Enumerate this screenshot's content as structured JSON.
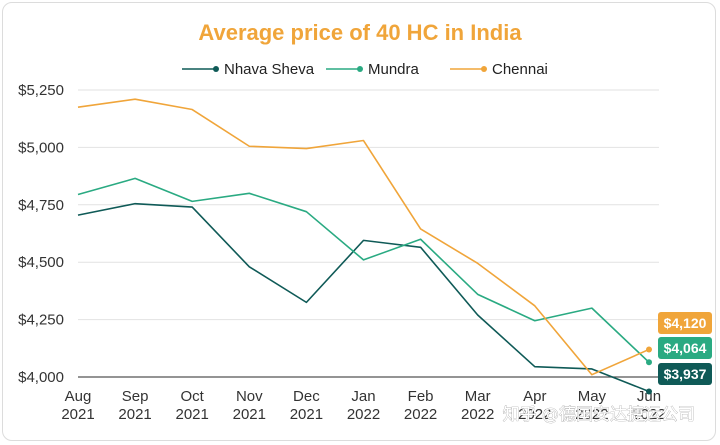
{
  "chart_data": {
    "type": "line",
    "title": "Average price of 40 HC in India",
    "categories": [
      [
        "Aug",
        "2021"
      ],
      [
        "Sep",
        "2021"
      ],
      [
        "Oct",
        "2021"
      ],
      [
        "Nov",
        "2021"
      ],
      [
        "Dec",
        "2021"
      ],
      [
        "Jan",
        "2022"
      ],
      [
        "Feb",
        "2022"
      ],
      [
        "Mar",
        "2022"
      ],
      [
        "Apr",
        "2022"
      ],
      [
        "May",
        "2022"
      ],
      [
        "Jun",
        "2022"
      ]
    ],
    "ylim": [
      4000,
      5250
    ],
    "yticks": [
      "$4,000",
      "$4,250",
      "$4,500",
      "$4,750",
      "$5,000",
      "$5,250"
    ],
    "ytick_values": [
      4000,
      4250,
      4500,
      4750,
      5000,
      5250
    ],
    "grid": "horizontal",
    "legend_position": "top-center",
    "series": [
      {
        "name": "Nhava Sheva",
        "color": "#0f5a57",
        "marker": "circle",
        "values": [
          4705,
          4755,
          4740,
          4480,
          4325,
          4595,
          4565,
          4270,
          4045,
          4035,
          3937
        ],
        "end_label": "$3,937"
      },
      {
        "name": "Mundra",
        "color": "#2aaa82",
        "marker": "circle",
        "values": [
          4795,
          4865,
          4765,
          4800,
          4720,
          4510,
          4600,
          4360,
          4245,
          4300,
          4064
        ],
        "end_label": "$4,064"
      },
      {
        "name": "Chennai",
        "color": "#f0a53a",
        "marker": "circle",
        "values": [
          5175,
          5210,
          5165,
          5005,
          4995,
          5030,
          4645,
          4495,
          4310,
          4010,
          4120
        ],
        "end_label": "$4,120"
      }
    ]
  },
  "watermark": "知乎 @德国安达捷运公司"
}
